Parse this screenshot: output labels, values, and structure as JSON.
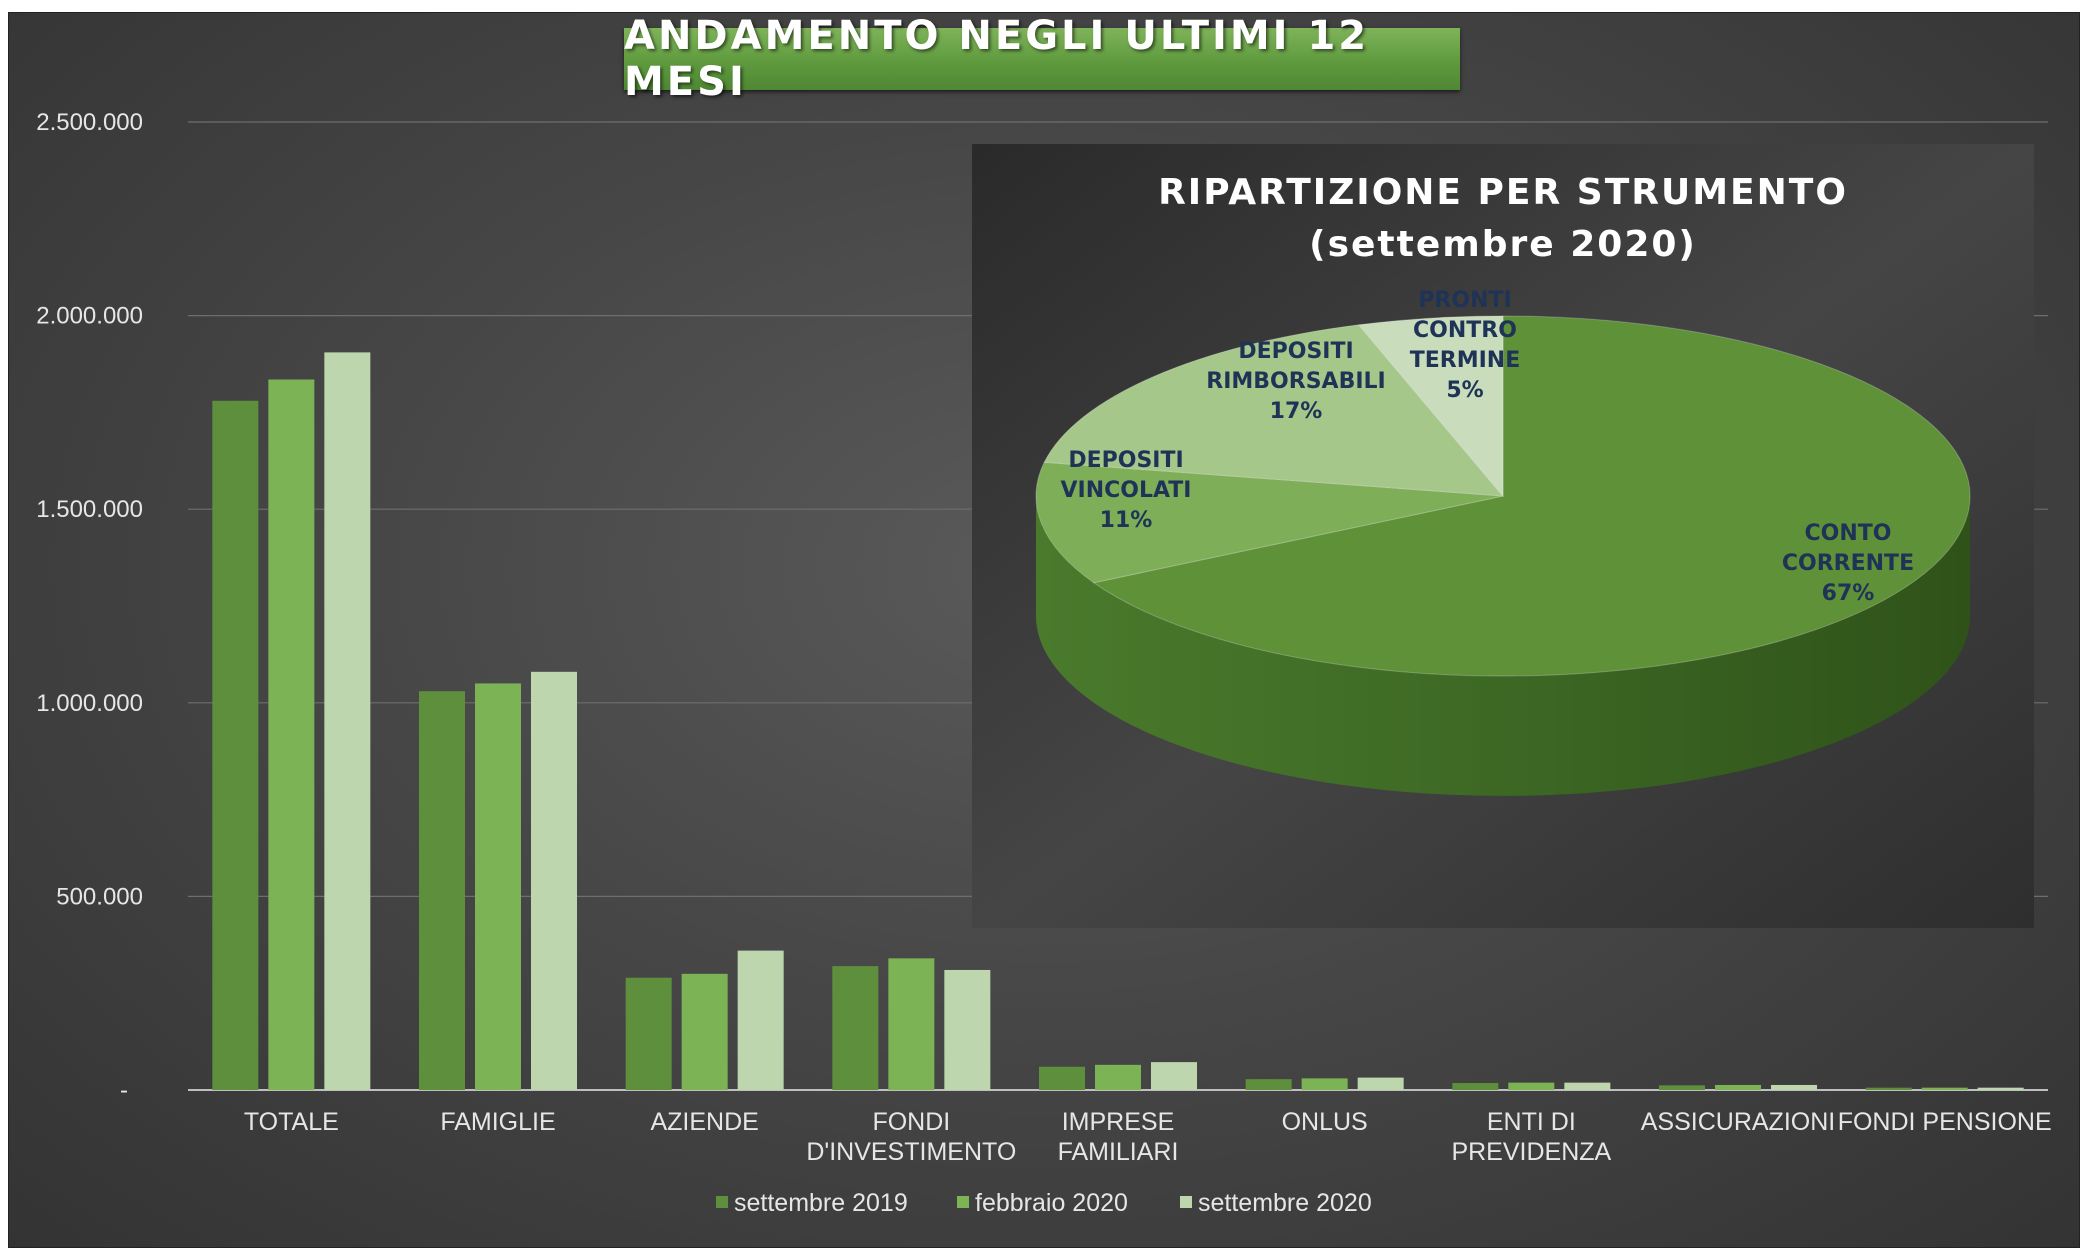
{
  "chart_data": [
    {
      "type": "bar",
      "title": "ANDAMENTO NEGLI ULTIMI 12 MESI",
      "categories": [
        [
          "TOTALE"
        ],
        [
          "FAMIGLIE"
        ],
        [
          "AZIENDE"
        ],
        [
          "FONDI",
          "D'INVESTIMENTO"
        ],
        [
          "IMPRESE",
          "FAMILIARI"
        ],
        [
          "ONLUS"
        ],
        [
          "ENTI DI",
          "PREVIDENZA"
        ],
        [
          "ASSICURAZIONI"
        ],
        [
          "FONDI PENSIONE"
        ]
      ],
      "series": [
        {
          "name": "settembre 2019",
          "color": "#5e8f3c",
          "values": [
            1780000,
            1030000,
            290000,
            320000,
            60000,
            28000,
            18000,
            12000,
            6000
          ]
        },
        {
          "name": "febbraio 2020",
          "color": "#7cb354",
          "values": [
            1835000,
            1050000,
            300000,
            340000,
            65000,
            30000,
            19000,
            13000,
            6000
          ]
        },
        {
          "name": "settembre 2020",
          "color": "#bdd6ad",
          "values": [
            1905000,
            1080000,
            360000,
            310000,
            72000,
            32000,
            19000,
            13000,
            6000
          ]
        }
      ],
      "yticks": [
        "-",
        "500.000",
        "1.000.000",
        "1.500.000",
        "2.000.000",
        "2.500.000"
      ],
      "ylim": [
        0,
        2500000
      ],
      "grid": true,
      "legend": "bottom"
    },
    {
      "type": "pie",
      "title": [
        "RIPARTIZIONE PER STRUMENTO",
        "(settembre 2020)"
      ],
      "slices": [
        {
          "label": [
            "CONTO",
            "CORRENTE",
            "67%"
          ],
          "value": 67,
          "color": "#5f9138"
        },
        {
          "label": [
            "DEPOSITI",
            "VINCOLATI",
            "11%"
          ],
          "value": 11,
          "color": "#7fae58"
        },
        {
          "label": [
            "DEPOSITI",
            "RIMBORSABILI",
            "17%"
          ],
          "value": 17,
          "color": "#a5c78a"
        },
        {
          "label": [
            "PRONTI",
            "CONTRO",
            "TERMINE",
            "5%"
          ],
          "value": 5,
          "color": "#c9dcbc"
        }
      ]
    }
  ]
}
